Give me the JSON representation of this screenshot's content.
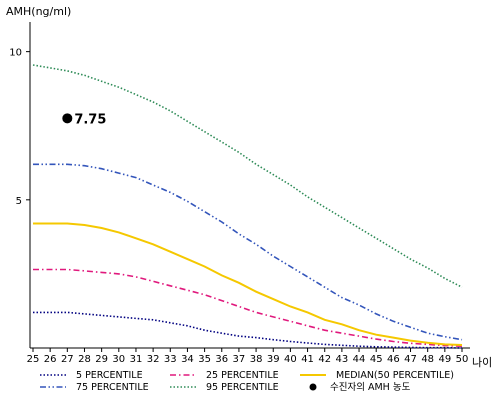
{
  "chart_data": {
    "type": "line",
    "ylabel": "AMH(ng/ml)",
    "xlabel": "나이",
    "xlim": [
      25,
      50
    ],
    "ylim": [
      0,
      11
    ],
    "x_ticks": [
      25,
      26,
      27,
      28,
      29,
      30,
      31,
      32,
      33,
      34,
      35,
      36,
      37,
      38,
      39,
      40,
      41,
      42,
      43,
      44,
      45,
      46,
      47,
      48,
      49,
      50
    ],
    "y_ticks": [
      5,
      10
    ],
    "grid": false,
    "legend_position": "bottom",
    "x": [
      25,
      26,
      27,
      28,
      29,
      30,
      31,
      32,
      33,
      34,
      35,
      36,
      37,
      38,
      39,
      40,
      41,
      42,
      43,
      44,
      45,
      46,
      47,
      48,
      49,
      50
    ],
    "series": [
      {
        "name": "5 PERCENTILE",
        "color": "#000080",
        "style": "dotted",
        "values": [
          1.2,
          1.2,
          1.2,
          1.15,
          1.1,
          1.05,
          1.0,
          0.95,
          0.85,
          0.75,
          0.6,
          0.5,
          0.4,
          0.35,
          0.28,
          0.22,
          0.17,
          0.12,
          0.09,
          0.06,
          0.04,
          0.03,
          0.02,
          0.01,
          0.01,
          0.0
        ]
      },
      {
        "name": "25 PERCENTILE",
        "color": "#e0197d",
        "style": "dashdot",
        "values": [
          2.65,
          2.65,
          2.65,
          2.6,
          2.55,
          2.5,
          2.4,
          2.25,
          2.1,
          1.95,
          1.8,
          1.6,
          1.4,
          1.2,
          1.05,
          0.9,
          0.75,
          0.6,
          0.5,
          0.4,
          0.3,
          0.22,
          0.16,
          0.12,
          0.08,
          0.06
        ]
      },
      {
        "name": "MEDIAN(50 PERCENTILE)",
        "color": "#f5c800",
        "style": "solid",
        "values": [
          4.2,
          4.2,
          4.2,
          4.15,
          4.05,
          3.9,
          3.7,
          3.5,
          3.25,
          3.0,
          2.75,
          2.45,
          2.2,
          1.9,
          1.65,
          1.4,
          1.2,
          0.95,
          0.8,
          0.6,
          0.45,
          0.35,
          0.25,
          0.18,
          0.12,
          0.1
        ]
      },
      {
        "name": "75 PERCENTILE",
        "color": "#3355bb",
        "style": "dashdotdot",
        "values": [
          6.2,
          6.2,
          6.2,
          6.15,
          6.05,
          5.9,
          5.75,
          5.5,
          5.25,
          4.95,
          4.6,
          4.25,
          3.85,
          3.5,
          3.1,
          2.75,
          2.4,
          2.05,
          1.7,
          1.45,
          1.15,
          0.9,
          0.7,
          0.5,
          0.38,
          0.28
        ]
      },
      {
        "name": "95 PERCENTILE",
        "color": "#2e8b57",
        "style": "dotted",
        "values": [
          9.55,
          9.45,
          9.35,
          9.2,
          9.0,
          8.8,
          8.55,
          8.3,
          8.0,
          7.65,
          7.3,
          6.95,
          6.6,
          6.2,
          5.85,
          5.5,
          5.1,
          4.75,
          4.4,
          4.05,
          3.7,
          3.35,
          3.0,
          2.7,
          2.35,
          2.05
        ]
      }
    ],
    "marker": {
      "name": "수진자의 AMH 농도",
      "x": 27,
      "y": 7.75,
      "label": "7.75",
      "color": "#000000"
    }
  }
}
